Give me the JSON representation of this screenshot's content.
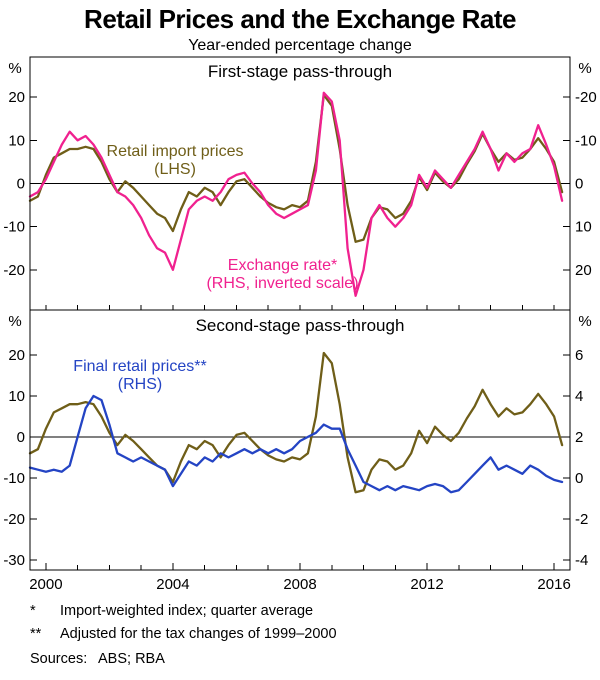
{
  "title": "Retail Prices and the Exchange Rate",
  "subtitle": "Year-ended percentage change",
  "colors": {
    "olive": "#6f5e18",
    "pink": "#f0218f",
    "blue": "#2444c4",
    "axis": "#000000"
  },
  "x_axis": {
    "range": [
      1999.5,
      2016.5
    ],
    "start": 1999.5,
    "step": 0.25,
    "ticks": [
      2000,
      2004,
      2008,
      2012,
      2016
    ],
    "minor_tick_every": 1
  },
  "chart_data": [
    {
      "type": "line",
      "panel": "top",
      "title": "First-stage pass-through",
      "unit_left": "%",
      "unit_right": "%",
      "ylim_left": [
        -29.3,
        29.3
      ],
      "yticks_left": [
        20,
        10,
        0,
        -10,
        -20
      ],
      "yticks_right": [
        -20,
        -10,
        0,
        10,
        20
      ],
      "right_axis": {
        "note": "inverted scale",
        "to_left_scale": -1,
        "to_left_offset": 0
      },
      "series": [
        {
          "name": "Retail import prices",
          "axis": "left",
          "color": "olive",
          "label_lines": [
            "Retail import prices",
            "(LHS)"
          ],
          "values": [
            -4,
            -3,
            2,
            6,
            7,
            8,
            8,
            8.5,
            8,
            5,
            1,
            -2,
            0.5,
            -1,
            -3,
            -5,
            -7,
            -8,
            -11,
            -6,
            -2,
            -3,
            -1,
            -2,
            -5,
            -2,
            0.5,
            1,
            -1,
            -3,
            -4.5,
            -5.5,
            -6,
            -5,
            -5.5,
            -4,
            5,
            20.5,
            18,
            8,
            -5,
            -13.5,
            -13,
            -8,
            -5.5,
            -6,
            -8,
            -7,
            -4,
            1.5,
            -1.5,
            2.5,
            0.5,
            -1,
            1,
            4.5,
            7.5,
            11.5,
            8,
            5,
            7,
            5.5,
            6,
            8,
            10.5,
            8,
            5,
            -2
          ]
        },
        {
          "name": "Exchange rate",
          "axis": "right",
          "color": "pink",
          "label_lines": [
            "Exchange rate*",
            "(RHS, inverted scale)"
          ],
          "values": [
            3,
            2,
            -1,
            -5,
            -9,
            -12,
            -10,
            -11,
            -9,
            -6,
            -2,
            2,
            3,
            5,
            8,
            12,
            15,
            16,
            20,
            13,
            6,
            4,
            3,
            4,
            2,
            -1,
            -2,
            -2.5,
            0,
            2,
            5,
            7,
            8,
            7,
            6,
            5,
            -3,
            -21,
            -19,
            -10,
            15,
            26,
            20,
            8,
            5,
            8,
            10,
            8,
            5,
            -2,
            1,
            -3,
            -1,
            1,
            -2,
            -5,
            -8,
            -12,
            -8,
            -3,
            -7,
            -5,
            -7,
            -8,
            -13.5,
            -9,
            -4,
            4
          ]
        }
      ]
    },
    {
      "type": "line",
      "panel": "bottom",
      "title": "Second-stage pass-through",
      "unit_left": "%",
      "unit_right": "%",
      "ylim_left": [
        -32.5,
        31
      ],
      "yticks_left": [
        20,
        10,
        0,
        -10,
        -20,
        -30
      ],
      "yticks_right": [
        6,
        4,
        2,
        0,
        -2,
        -4
      ],
      "right_axis": {
        "note": "right value = left/5 + 2",
        "to_left_scale": 5,
        "to_left_offset": -10
      },
      "series": [
        {
          "name": "Retail import prices",
          "axis": "left",
          "color": "olive",
          "label_lines": [],
          "values": [
            -4,
            -3,
            2,
            6,
            7,
            8,
            8,
            8.5,
            8,
            5,
            1,
            -2,
            0.5,
            -1,
            -3,
            -5,
            -7,
            -8,
            -11,
            -6,
            -2,
            -3,
            -1,
            -2,
            -5,
            -2,
            0.5,
            1,
            -1,
            -3,
            -4.5,
            -5.5,
            -6,
            -5,
            -5.5,
            -4,
            5,
            20.5,
            18,
            8,
            -5,
            -13.5,
            -13,
            -8,
            -5.5,
            -6,
            -8,
            -7,
            -4,
            1.5,
            -1.5,
            2.5,
            0.5,
            -1,
            1,
            4.5,
            7.5,
            11.5,
            8,
            5,
            7,
            5.5,
            6,
            8,
            10.5,
            8,
            5,
            -2
          ]
        },
        {
          "name": "Final retail prices",
          "axis": "right",
          "color": "blue",
          "label_lines": [
            "Final retail prices**",
            "(RHS)"
          ],
          "values": [
            0.5,
            0.4,
            0.3,
            0.4,
            0.3,
            0.6,
            2.0,
            3.4,
            4.0,
            3.8,
            2.6,
            1.2,
            1.0,
            0.8,
            1.0,
            0.8,
            0.6,
            0.4,
            -0.4,
            0.2,
            0.8,
            0.6,
            1.0,
            0.8,
            1.2,
            1.0,
            1.2,
            1.4,
            1.2,
            1.4,
            1.2,
            1.4,
            1.2,
            1.4,
            1.8,
            2.0,
            2.2,
            2.6,
            2.4,
            2.4,
            1.4,
            0.6,
            -0.2,
            -0.4,
            -0.6,
            -0.4,
            -0.6,
            -0.4,
            -0.5,
            -0.6,
            -0.4,
            -0.3,
            -0.4,
            -0.7,
            -0.6,
            -0.2,
            0.2,
            0.6,
            1.0,
            0.4,
            0.6,
            0.4,
            0.2,
            0.6,
            0.4,
            0.1,
            -0.1,
            -0.2
          ]
        }
      ]
    }
  ],
  "footnotes": [
    {
      "marker": "*",
      "text": "Import-weighted index; quarter average"
    },
    {
      "marker": "**",
      "text": "Adjusted for the tax changes of 1999–2000"
    }
  ],
  "sources": {
    "label": "Sources:",
    "text": "ABS; RBA"
  }
}
